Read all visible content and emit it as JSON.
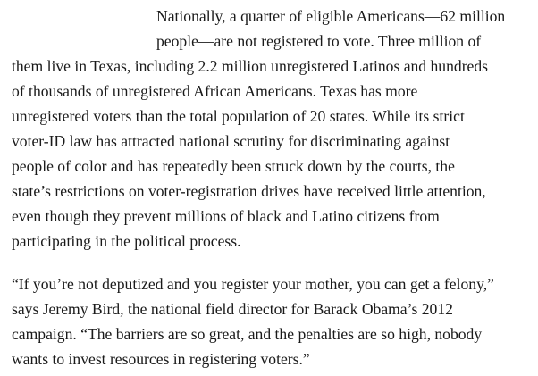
{
  "article": {
    "paragraph1": {
      "lines": [
        "Nationally, a quarter of eligible Americans—62 million",
        "people—are not registered to vote. Three million of",
        "them live in Texas, including 2.2 million unregistered Latinos and hundreds",
        "of thousands of unregistered African Americans. Texas has more",
        "unregistered voters than the total population of 20 states. While its strict",
        "voter-ID law has attracted national scrutiny for discriminating against",
        "people of color and has repeatedly been struck down by the courts, the",
        "state’s restrictions on voter-registration drives have received little attention,",
        "even though they prevent millions of black and Latino citizens from",
        "participating in the political process."
      ]
    },
    "paragraph2": {
      "lines": [
        "“If you’re not deputized and you register your mother, you can get a felony,”",
        "says Jeremy Bird, the national field director for Barack Obama’s 2012",
        "campaign. “The barriers are so great, and the penalties are so high, nobody",
        "wants to invest resources in registering voters.”"
      ]
    }
  }
}
